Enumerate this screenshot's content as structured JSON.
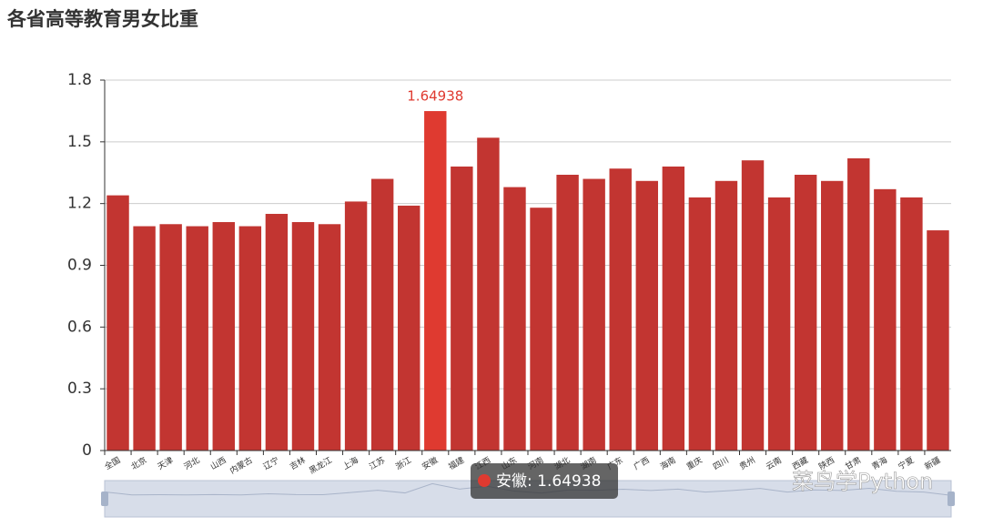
{
  "chart_data": {
    "type": "bar",
    "title": "各省高等教育男女比重",
    "categories": [
      "全国",
      "北京",
      "天津",
      "河北",
      "山西",
      "内蒙古",
      "辽宁",
      "吉林",
      "黑龙江",
      "上海",
      "江苏",
      "浙江",
      "安徽",
      "福建",
      "江西",
      "山东",
      "河南",
      "湖北",
      "湖南",
      "广东",
      "广西",
      "海南",
      "重庆",
      "四川",
      "贵州",
      "云南",
      "西藏",
      "陕西",
      "甘肃",
      "青海",
      "宁夏",
      "新疆"
    ],
    "values": [
      1.24,
      1.09,
      1.1,
      1.09,
      1.11,
      1.09,
      1.15,
      1.11,
      1.1,
      1.21,
      1.32,
      1.19,
      1.64938,
      1.38,
      1.52,
      1.28,
      1.18,
      1.34,
      1.32,
      1.37,
      1.31,
      1.38,
      1.23,
      1.31,
      1.41,
      1.23,
      1.34,
      1.31,
      1.42,
      1.27,
      1.23,
      1.07
    ],
    "value_labels": [
      null,
      null,
      null,
      null,
      null,
      null,
      null,
      null,
      null,
      null,
      null,
      null,
      "1.64938",
      null,
      null,
      null,
      null,
      null,
      null,
      null,
      null,
      null,
      null,
      null,
      null,
      null,
      null,
      null,
      null,
      null,
      null,
      null
    ],
    "colors": [
      "#c23531",
      "#c23531",
      "#c23531",
      "#c23531",
      "#c23531",
      "#c23531",
      "#c23531",
      "#c23531",
      "#c23531",
      "#c23531",
      "#c23531",
      "#c23531",
      "#df3a30",
      "#c23531",
      "#c23531",
      "#c23531",
      "#c23531",
      "#c23531",
      "#c23531",
      "#c23531",
      "#c23531",
      "#c23531",
      "#c23531",
      "#c23531",
      "#c23531",
      "#c23531",
      "#c23531",
      "#c23531",
      "#c23531",
      "#c23531",
      "#c23531",
      "#c23531"
    ],
    "ylim": [
      0,
      1.8
    ],
    "yticks": [
      0,
      0.3,
      0.6,
      0.9,
      1.2,
      1.5,
      1.8
    ],
    "grid": true,
    "tooltip": "安徽: 1.64938",
    "watermark": "菜鸟学Python"
  }
}
